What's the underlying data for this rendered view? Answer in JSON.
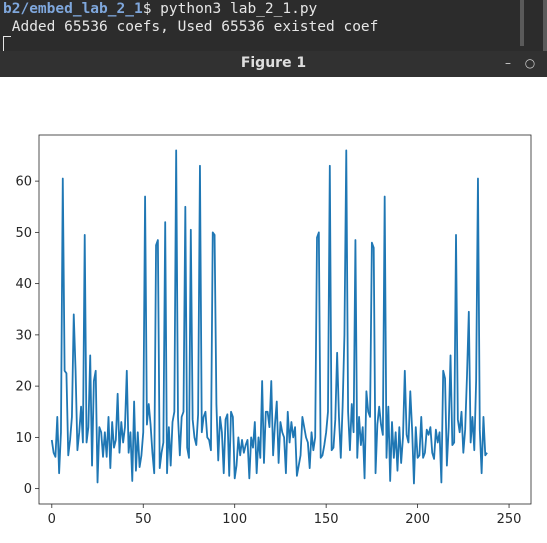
{
  "terminal": {
    "prompt_path": "b2/embed_lab_2_1",
    "prompt_symbol": "$",
    "command": " python3 lab_2_1.py",
    "output": " Added 65536 coefs, Used 65536 existed coef"
  },
  "window": {
    "title": "Figure 1",
    "minimize_icon": "minimize-icon",
    "maximize_icon": "maximize-icon"
  },
  "chart_data": {
    "type": "line",
    "xlim": [
      -7,
      262
    ],
    "ylim": [
      -3,
      69
    ],
    "xticks": [
      0,
      50,
      100,
      150,
      200,
      250
    ],
    "yticks": [
      0,
      10,
      20,
      30,
      40,
      50,
      60
    ],
    "xtick_labels": [
      "0",
      "50",
      "100",
      "150",
      "200",
      "250"
    ],
    "ytick_labels": [
      "0",
      "10",
      "20",
      "30",
      "40",
      "50",
      "60"
    ],
    "grid": false,
    "series_color": "#1f77b4",
    "y": [
      9.5,
      7,
      6.2,
      14,
      3,
      11,
      60.5,
      23,
      22.5,
      6.5,
      9.5,
      14,
      34,
      23,
      7.5,
      11,
      16,
      9,
      49.5,
      9,
      12,
      26,
      4.5,
      21,
      23,
      1.2,
      12,
      11,
      6.2,
      11,
      6.2,
      14,
      4,
      13,
      8,
      9.5,
      18.5,
      7,
      13,
      9,
      12,
      23,
      7,
      11,
      1.5,
      17,
      3.5,
      11,
      4.2,
      6.5,
      11,
      57,
      12.5,
      16.5,
      12.5,
      7,
      3,
      47.5,
      48.5,
      4,
      7,
      9,
      52,
      3,
      12,
      4.5,
      13,
      15,
      66,
      14,
      6.5,
      14,
      15,
      55,
      8,
      6,
      50.5,
      13.5,
      10,
      8.5,
      14.5,
      63,
      11,
      14,
      15,
      10,
      9.5,
      7.5,
      50,
      49.5,
      16.5,
      5.5,
      14,
      11,
      3,
      13.5,
      14.5,
      2.5,
      15,
      14,
      2,
      4.5,
      10,
      6.5,
      9.5,
      7,
      8.5,
      9.5,
      2,
      10,
      8,
      13,
      3,
      10,
      6,
      21,
      5,
      15,
      15,
      12,
      21,
      6.5,
      12.5,
      17,
      5,
      13,
      11,
      10,
      3,
      15,
      9,
      13,
      10,
      12,
      2.5,
      4.5,
      6.5,
      14,
      12,
      10,
      9,
      4,
      11,
      7.5,
      10,
      49,
      50,
      6,
      6.5,
      8.5,
      11,
      15,
      63,
      7.5,
      8,
      13.5,
      26.5,
      14,
      6,
      16,
      30,
      66,
      15,
      7.5,
      16.5,
      11,
      48.5,
      6,
      14,
      8.5,
      12,
      2,
      19,
      15,
      14,
      48,
      47,
      3,
      12.5,
      16,
      12.5,
      10.5,
      57,
      6,
      16,
      1.5,
      13,
      6,
      11,
      3.5,
      12,
      5,
      10,
      23,
      10.5,
      9,
      19,
      11.5,
      1,
      12,
      6,
      6.5,
      14,
      6,
      7,
      11.5,
      10.5,
      12,
      7,
      5.8,
      11.5,
      9,
      11,
      1.2,
      23,
      21.5,
      4.5,
      12,
      26,
      8.5,
      9,
      49.5,
      13.5,
      11,
      15,
      7,
      11.5,
      22,
      34.5,
      9,
      14,
      7.5,
      21,
      60.5,
      11.5,
      3,
      14,
      6.5,
      7
    ]
  }
}
